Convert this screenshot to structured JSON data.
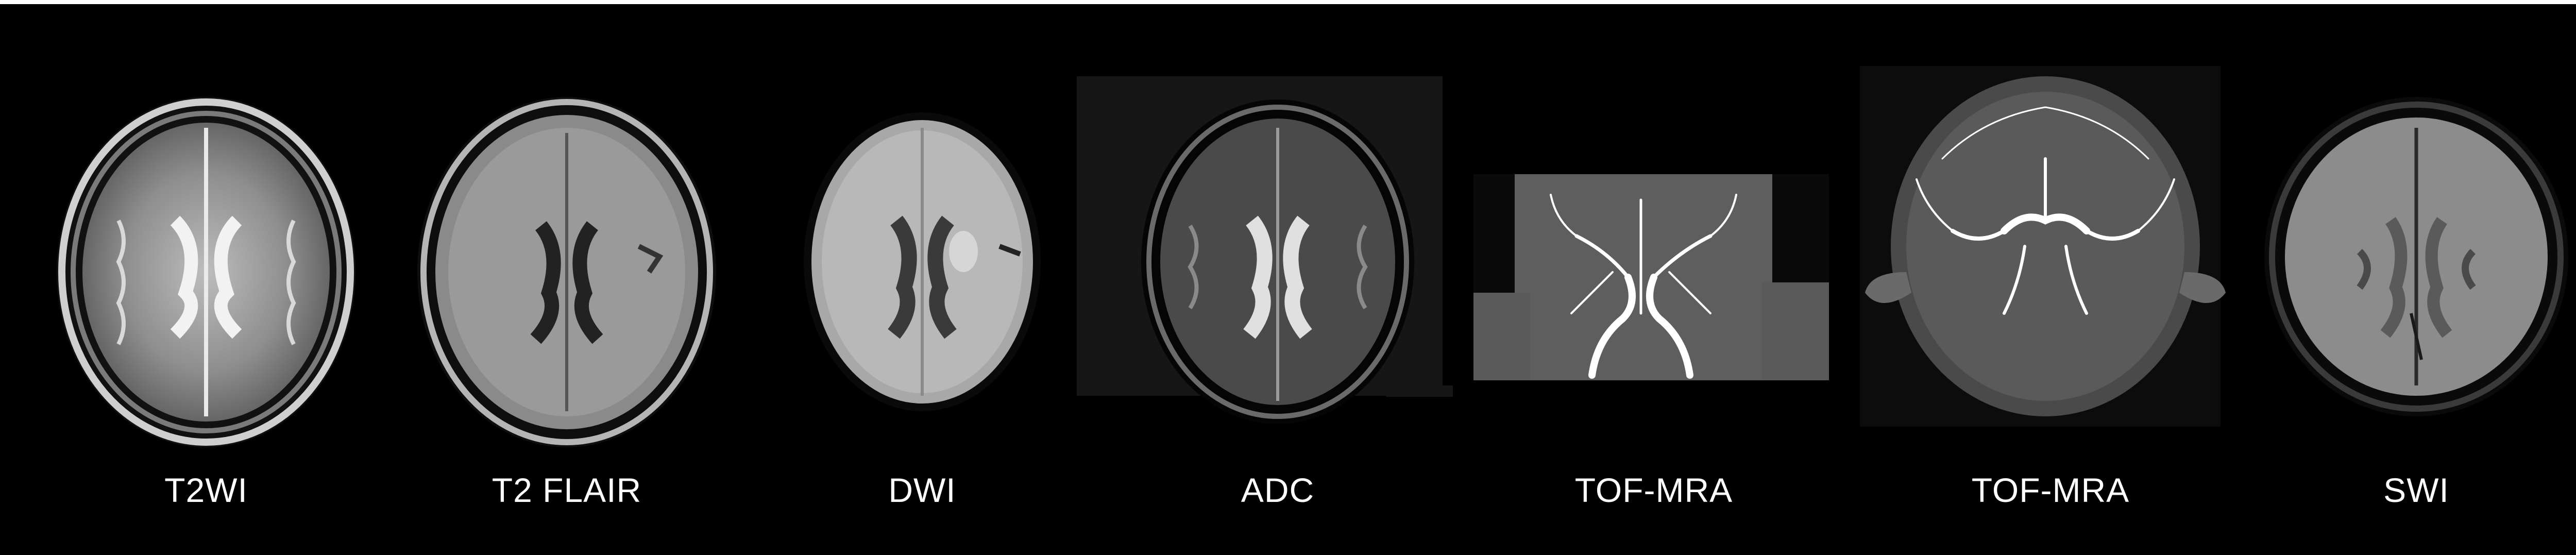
{
  "panels": [
    {
      "label": "T2WI"
    },
    {
      "label": "T2 FLAIR"
    },
    {
      "label": "DWI"
    },
    {
      "label": "ADC"
    },
    {
      "label": "TOF-MRA"
    },
    {
      "label": "TOF-MRA"
    },
    {
      "label": "SWI"
    }
  ],
  "colors": {
    "background": "#000000",
    "caption": "#ffffff"
  }
}
